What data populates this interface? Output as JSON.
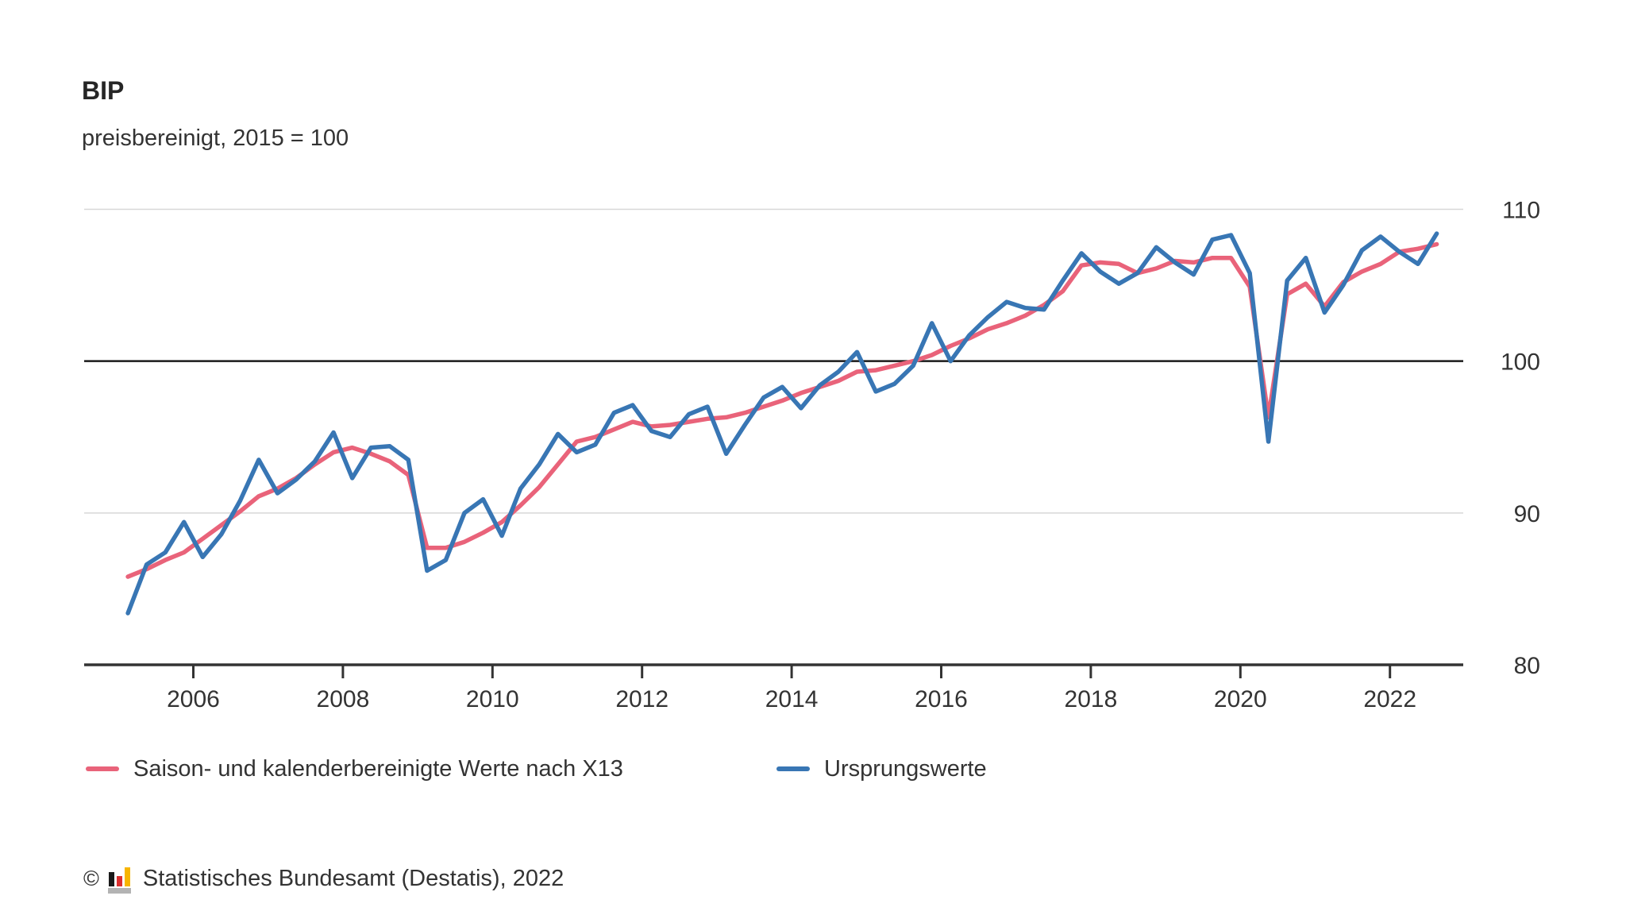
{
  "header": {
    "title": "BIP",
    "subtitle": "preisbereinigt, 2015 = 100"
  },
  "chart_data": {
    "type": "line",
    "title": "BIP",
    "subtitle": "preisbereinigt, 2015 = 100",
    "frequency": "quarterly",
    "x_start": "2005 Q1",
    "x_end": "2022 Q3",
    "x_tick_years": [
      2006,
      2008,
      2010,
      2012,
      2014,
      2016,
      2018,
      2020,
      2022
    ],
    "x_tick_labels": [
      "2006",
      "2008",
      "2010",
      "2012",
      "2014",
      "2016",
      "2018",
      "2020",
      "2022"
    ],
    "ylim": [
      80,
      110
    ],
    "y_ticks": [
      {
        "value": 80,
        "label": "80",
        "line": "axis"
      },
      {
        "value": 90,
        "label": "90",
        "line": "grid"
      },
      {
        "value": 100,
        "label": "100",
        "line": "emphasis"
      },
      {
        "value": 110,
        "label": "110",
        "line": "grid"
      }
    ],
    "grid": "horizontal-only",
    "legend_position": "bottom",
    "series": [
      {
        "name": "Saison- und kalenderbereinigte Werte nach X13",
        "color": "#e9637a",
        "values": [
          85.8,
          86.3,
          86.9,
          87.4,
          88.3,
          89.2,
          90.1,
          91.1,
          91.6,
          92.3,
          93.2,
          94.0,
          94.3,
          93.9,
          93.4,
          92.5,
          87.7,
          87.7,
          88.1,
          88.7,
          89.4,
          90.5,
          91.7,
          93.2,
          94.7,
          95.0,
          95.5,
          96.0,
          95.7,
          95.8,
          96.0,
          96.2,
          96.3,
          96.6,
          97.0,
          97.4,
          97.9,
          98.3,
          98.7,
          99.3,
          99.4,
          99.7,
          100.0,
          100.4,
          101.0,
          101.5,
          102.1,
          102.5,
          103.0,
          103.7,
          104.6,
          106.3,
          106.5,
          106.4,
          105.8,
          106.1,
          106.6,
          106.5,
          106.8,
          106.8,
          104.9,
          96.3,
          104.4,
          105.1,
          103.6,
          105.2,
          105.9,
          106.4,
          107.2,
          107.4,
          107.7
        ]
      },
      {
        "name": "Ursprungswerte",
        "color": "#3876b4",
        "values": [
          83.4,
          86.6,
          87.4,
          89.4,
          87.1,
          88.6,
          90.8,
          93.5,
          91.3,
          92.2,
          93.4,
          95.3,
          92.3,
          94.3,
          94.4,
          93.5,
          86.2,
          86.9,
          90.0,
          90.9,
          88.5,
          91.6,
          93.2,
          95.2,
          94.0,
          94.5,
          96.6,
          97.1,
          95.4,
          95.0,
          96.5,
          97.0,
          93.9,
          95.8,
          97.6,
          98.3,
          96.9,
          98.4,
          99.3,
          100.6,
          98.0,
          98.5,
          99.7,
          102.5,
          100.0,
          101.7,
          102.9,
          103.9,
          103.5,
          103.4,
          105.3,
          107.1,
          105.9,
          105.1,
          105.8,
          107.5,
          106.5,
          105.7,
          108.0,
          108.3,
          105.8,
          94.7,
          105.3,
          106.8,
          103.2,
          105.0,
          107.3,
          108.2,
          107.2,
          106.4,
          108.4
        ]
      }
    ]
  },
  "legend": {
    "items": [
      {
        "label": "Saison- und kalenderbereinigte Werte nach X13",
        "color": "#e9637a"
      },
      {
        "label": "Ursprungswerte",
        "color": "#3876b4"
      }
    ]
  },
  "footer": {
    "copyright": "©",
    "source": "Statistisches Bundesamt (Destatis), 2022",
    "logo": "destatis-bar-chart-logo",
    "logo_colors": {
      "bar1": "#1a1a1a",
      "bar2": "#dc2f2f",
      "bar3": "#f7b500",
      "base": "#b3b3b3"
    }
  },
  "colors": {
    "background": "#ffffff",
    "grid_line": "#d8d8d8",
    "reference_line_100": "#1a1a1a",
    "axis_line": "#333333",
    "text": "#333333",
    "series_adjusted": "#e9637a",
    "series_original": "#3876b4"
  }
}
